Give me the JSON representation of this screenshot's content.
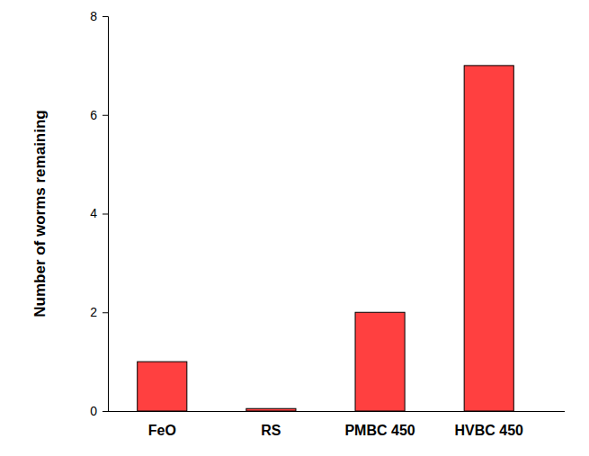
{
  "chart_data": {
    "type": "bar",
    "y_label": "Number of worms remaining",
    "categories": [
      "FeO",
      "RS",
      "PMBC 450",
      "HVBC 450"
    ],
    "values": [
      1,
      0.05,
      2,
      7
    ],
    "color": "#ff4040",
    "ylim": [
      0,
      8
    ],
    "yticks": [
      0,
      2,
      4,
      6,
      8
    ],
    "grid": false
  }
}
